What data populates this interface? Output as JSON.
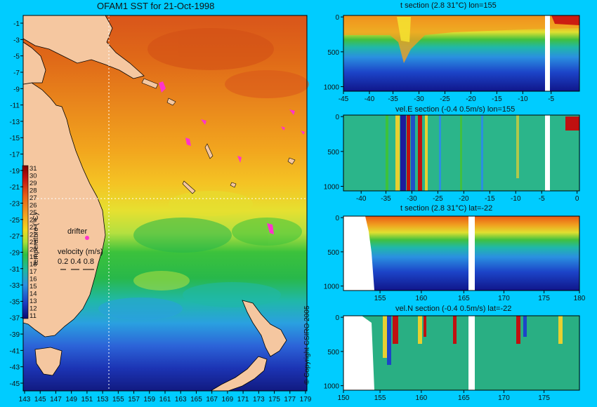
{
  "map": {
    "title": "OFAM1 SST for 21-Oct-1998",
    "lon_ticks": [
      "143",
      "145",
      "147",
      "149",
      "151",
      "153",
      "155",
      "157",
      "159",
      "161",
      "163",
      "165",
      "167",
      "169",
      "171",
      "173",
      "175",
      "177",
      "179"
    ],
    "lat_ticks": [
      "-1",
      "-3",
      "-5",
      "-7",
      "-9",
      "-11",
      "-13",
      "-15",
      "-17",
      "-19",
      "-21",
      "-23",
      "-25",
      "-27",
      "-29",
      "-31",
      "-33",
      "-35",
      "-37",
      "-39",
      "-41",
      "-43",
      "-45"
    ],
    "colorbar_label": "temperature (°C)",
    "colorbar_ticks": [
      "31",
      "30",
      "29",
      "28",
      "27",
      "26",
      "25",
      "24",
      "23",
      "22",
      "21",
      "20",
      "19",
      "18",
      "17",
      "16",
      "15",
      "14",
      "13",
      "12",
      "11"
    ],
    "drifter_label": "drifter",
    "velocity_label": "velocity (m/s)",
    "velocity_scale": "0.2 0.4 0.8",
    "copyright": "© Copyright CSIRO 2005",
    "crosshair": {
      "lon": 155,
      "lat": -22
    },
    "colors": {
      "land": "#f5c7a0",
      "drifter": "#ff33cc"
    }
  },
  "panels": [
    {
      "id": "t-lon",
      "title": "t section (2.8      31°C) lon=155",
      "x_ticks": [
        "-45",
        "-40",
        "-35",
        "-30",
        "-25",
        "-20",
        "-15",
        "-10",
        "-5"
      ],
      "y_ticks": [
        "0",
        "500",
        "1000"
      ]
    },
    {
      "id": "u-lon",
      "title": "vel.E section (-0.4      0.5m/s) lon=155",
      "x_ticks": [
        "-40",
        "-35",
        "-30",
        "-25",
        "-20",
        "-15",
        "-10",
        "-5",
        "0"
      ],
      "y_ticks": [
        "0",
        "500",
        "1000"
      ]
    },
    {
      "id": "t-lat",
      "title": "t section (2.8      31°C) lat=-22",
      "x_ticks": [
        "155",
        "160",
        "165",
        "170",
        "175",
        "180"
      ],
      "y_ticks": [
        "0",
        "500",
        "1000"
      ]
    },
    {
      "id": "v-lat",
      "title": "vel.N section (-0.4      0.5m/s) lat=-22",
      "x_ticks": [
        "150",
        "155",
        "160",
        "165",
        "170",
        "175"
      ],
      "y_ticks": [
        "0",
        "500",
        "1000"
      ]
    }
  ]
}
